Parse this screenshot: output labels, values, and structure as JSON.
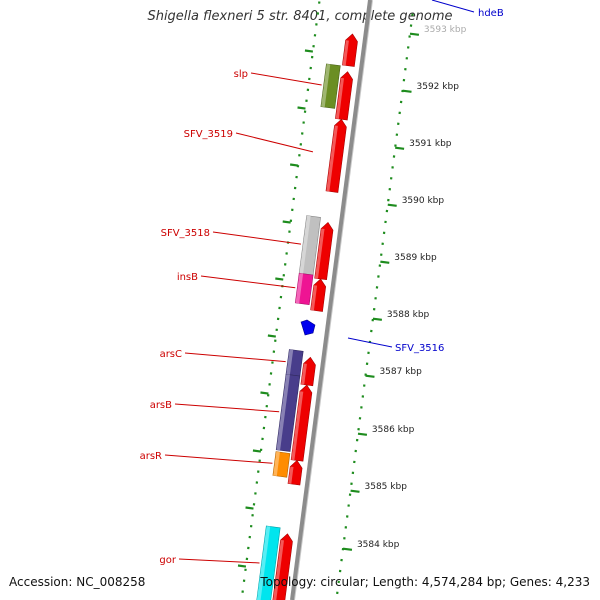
{
  "title": "Shigella flexneri 5 str. 8401, complete genome",
  "accession": "Accession: NC_008258",
  "topology": "Topology: circular; Length: 4,574,284 bp; Genes: 4,233",
  "colors": {
    "backbone": "#8c8c8c",
    "ticks": "#1e8c1e",
    "cds_forward": "#ee0000",
    "left_label": "#cc0000",
    "right_label": "#0000cc"
  },
  "ticks": [
    "3593 kbp",
    "3592 kbp",
    "3591 kbp",
    "3590 kbp",
    "3589 kbp",
    "3588 kbp",
    "3587 kbp",
    "3586 kbp",
    "3585 kbp",
    "3584 kbp"
  ],
  "genes_left": [
    {
      "label": "slp",
      "color": "#6b8e23"
    },
    {
      "label": "SFV_3519",
      "color": "#ee0000"
    },
    {
      "label": "SFV_3518",
      "color": "#c0c0c0"
    },
    {
      "label": "insB",
      "color": "#ee1493"
    },
    {
      "label": "arsC",
      "color": "#483d8b"
    },
    {
      "label": "arsB",
      "color": "#483d8b"
    },
    {
      "label": "arsR",
      "color": "#ff8c00"
    },
    {
      "label": "gor",
      "color": "#00e5ee"
    }
  ],
  "genes_right": [
    {
      "label": "hdeB"
    },
    {
      "label": "SFV_3516"
    }
  ]
}
